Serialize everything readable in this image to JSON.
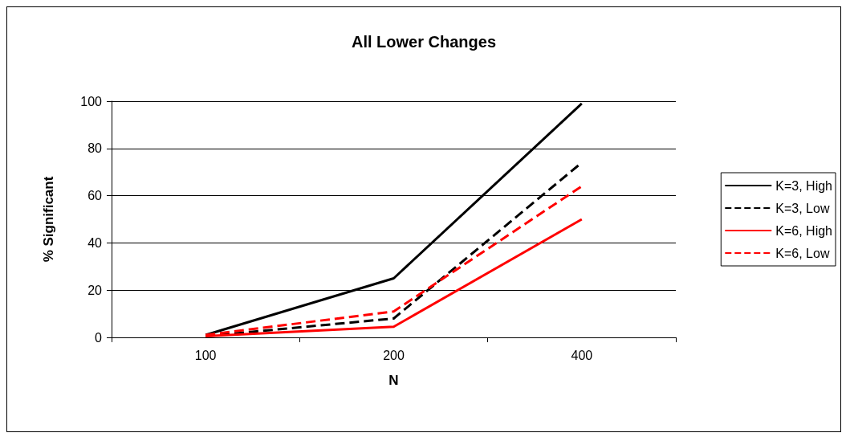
{
  "chart_data": {
    "type": "line",
    "title": "All Lower Changes",
    "xlabel": "N",
    "ylabel": "% Significant",
    "categories": [
      "100",
      "200",
      "400"
    ],
    "series": [
      {
        "name": "K=3, High",
        "color": "#000000",
        "values": [
          1,
          25,
          99
        ],
        "line_style": "solid"
      },
      {
        "name": "K=3, Low",
        "color": "#000000",
        "values": [
          0.5,
          8,
          74
        ],
        "line_style": "dashed"
      },
      {
        "name": "K=6, High",
        "color": "#ff0000",
        "values": [
          0.5,
          4.5,
          50
        ],
        "line_style": "solid"
      },
      {
        "name": "K=6, Low",
        "color": "#ff0000",
        "values": [
          1,
          11,
          64
        ],
        "line_style": "dashed"
      }
    ],
    "ylim": [
      0,
      100
    ],
    "yticks": [
      0,
      20,
      40,
      60,
      80,
      100
    ],
    "grid": "y",
    "legend": "right",
    "marker": "none"
  }
}
